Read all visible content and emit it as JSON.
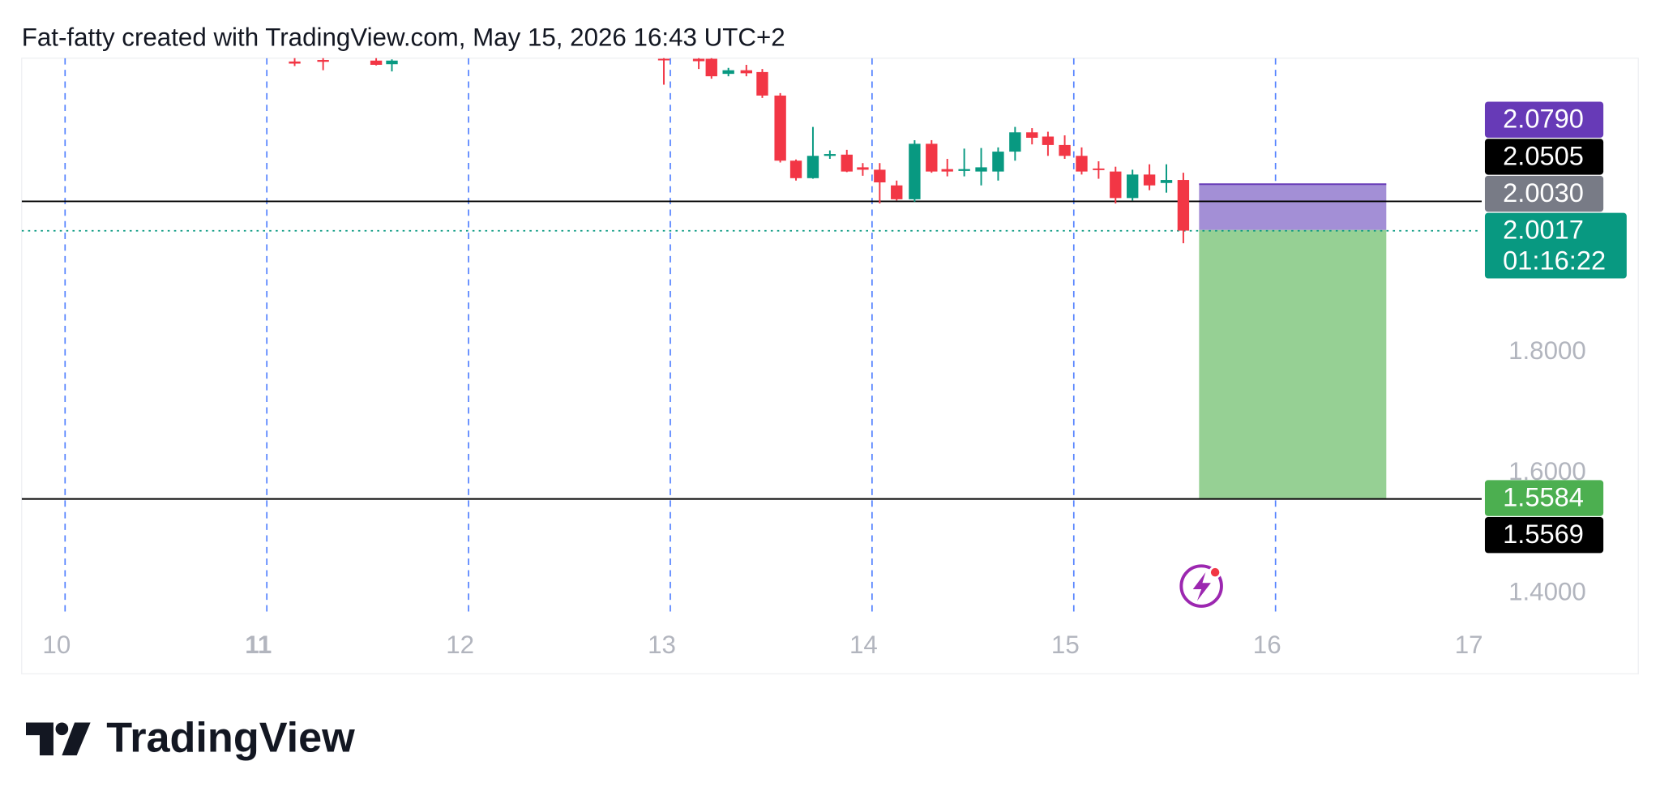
{
  "header": "Fat-fatty created with TradingView.com, May 15, 2026 16:43 UTC+2",
  "brand": "TradingView",
  "chart_data": {
    "type": "candlestick",
    "up_color": "#089981",
    "down_color": "#f23645",
    "xlim": [
      9.785,
      17.022
    ],
    "xticks": [
      10,
      11,
      12,
      13,
      14,
      15,
      16,
      17
    ],
    "ylim": [
      1.358,
      2.288
    ],
    "yticks": [
      {
        "value": 1.8,
        "label": "1.8000"
      },
      {
        "value": 1.6,
        "label": "1.6000"
      },
      {
        "value": 1.4,
        "label": "1.4000"
      }
    ],
    "x": [
      11.138,
      11.279,
      11.542,
      11.62,
      12.968,
      13.141,
      13.204,
      13.288,
      13.377,
      13.456,
      13.545,
      13.623,
      13.707,
      13.791,
      13.875,
      13.954,
      14.038,
      14.122,
      14.211,
      14.295,
      14.373,
      14.457,
      14.541,
      14.625,
      14.709,
      14.793,
      14.872,
      14.955,
      15.039,
      15.123,
      15.207,
      15.291,
      15.375,
      15.459,
      15.543
    ],
    "open": [
      2.2825,
      2.285,
      2.284,
      2.278,
      2.287,
      2.287,
      2.287,
      2.262,
      2.268,
      2.265,
      2.226,
      2.118,
      2.089,
      2.126,
      2.128,
      2.107,
      2.103,
      2.077,
      2.054,
      2.146,
      2.104,
      2.101,
      2.1,
      2.1,
      2.133,
      2.165,
      2.158,
      2.144,
      2.126,
      2.105,
      2.1,
      2.056,
      2.095,
      2.081,
      2.086
    ],
    "high": [
      2.29,
      2.29,
      2.29,
      2.286,
      2.29,
      2.29,
      2.29,
      2.272,
      2.277,
      2.27,
      2.23,
      2.12,
      2.174,
      2.135,
      2.136,
      2.114,
      2.114,
      2.085,
      2.152,
      2.152,
      2.121,
      2.138,
      2.139,
      2.14,
      2.174,
      2.172,
      2.166,
      2.16,
      2.14,
      2.117,
      2.108,
      2.103,
      2.112,
      2.112,
      2.098
    ],
    "low": [
      2.275,
      2.268,
      2.276,
      2.266,
      2.244,
      2.27,
      2.254,
      2.258,
      2.258,
      2.222,
      2.115,
      2.085,
      2.088,
      2.121,
      2.099,
      2.093,
      2.047,
      2.052,
      2.05,
      2.098,
      2.092,
      2.092,
      2.077,
      2.085,
      2.118,
      2.145,
      2.126,
      2.121,
      2.095,
      2.088,
      2.047,
      2.052,
      2.069,
      2.065,
      1.981
    ],
    "close": [
      2.279,
      2.282,
      2.277,
      2.284,
      2.285,
      2.283,
      2.258,
      2.268,
      2.263,
      2.226,
      2.118,
      2.089,
      2.126,
      2.129,
      2.1,
      2.103,
      2.082,
      2.054,
      2.146,
      2.1,
      2.1,
      2.104,
      2.107,
      2.133,
      2.165,
      2.156,
      2.144,
      2.126,
      2.1,
      2.103,
      2.056,
      2.095,
      2.077,
      2.086,
      2.002
    ],
    "hlines": [
      {
        "value": 2.0505,
        "color": "#000000"
      },
      {
        "value": 1.5569,
        "color": "#000000"
      }
    ],
    "last_price_line": {
      "value": 2.0017,
      "color": "#089981"
    },
    "position": {
      "x_start": 15.621,
      "x_end": 16.549,
      "entry": 2.003,
      "stop": 2.079,
      "target": 1.5584,
      "stop_color": "#a38fd6",
      "target_color": "#96d094"
    },
    "price_labels": [
      {
        "value": 2.079,
        "label": "2.0790",
        "color": "#673ab7"
      },
      {
        "value": 2.0505,
        "label": "2.0505",
        "color": "#000000"
      },
      {
        "value": 2.003,
        "label": "2.0030",
        "color": "#787b86"
      },
      {
        "value": 2.0017,
        "label": "2.0017",
        "sublabel": "01:16:22",
        "color": "#089981"
      },
      {
        "value": 1.5584,
        "label": "1.5584",
        "color": "#4caf50"
      },
      {
        "value": 1.5569,
        "label": "1.5569",
        "color": "#000000"
      }
    ]
  }
}
